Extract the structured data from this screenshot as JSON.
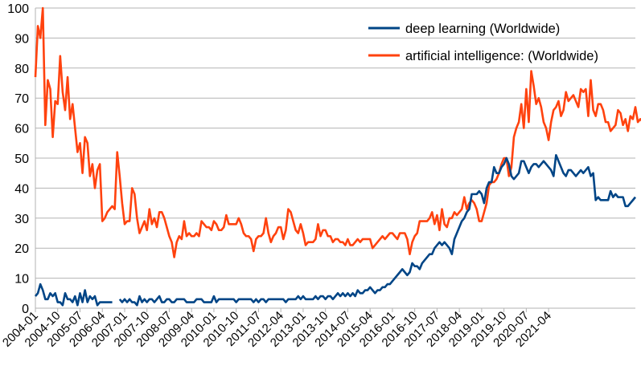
{
  "chart_data": {
    "type": "line",
    "title": "",
    "xlabel": "",
    "ylabel": "",
    "ylim": [
      0,
      100
    ],
    "yticks": [
      0,
      10,
      20,
      30,
      40,
      50,
      60,
      70,
      80,
      90,
      100
    ],
    "grid": "horizontal",
    "legend_position": "top-right",
    "x_start": "2004-01",
    "x_tick_labels": [
      "2004-01",
      "2004-10",
      "2005-07",
      "2006-04",
      "2007-01",
      "2007-10",
      "2008-07",
      "2009-04",
      "2010-01",
      "2010-10",
      "2011-07",
      "2012-04",
      "2013-01",
      "2013-10",
      "2014-07",
      "2015-04",
      "2016-01",
      "2016-10",
      "2017-07",
      "2018-04",
      "2019-01",
      "2019-10",
      "2020-07",
      "2021-04"
    ],
    "series": [
      {
        "name": "deep learning (Worldwide)",
        "color": "#004586",
        "values": [
          4,
          5,
          8,
          6,
          3,
          3,
          5,
          4,
          5,
          2,
          2,
          1,
          5,
          3,
          3,
          2,
          4,
          1,
          5,
          2,
          6,
          2,
          4,
          3,
          4,
          1,
          2,
          2,
          2,
          2,
          2,
          2,
          null,
          null,
          3,
          2,
          3,
          2,
          3,
          2,
          2,
          1,
          4,
          2,
          3,
          2,
          3,
          3,
          2,
          3,
          4,
          2,
          2,
          3,
          3,
          2,
          2,
          3,
          3,
          3,
          3,
          2,
          2,
          2,
          2,
          3,
          3,
          3,
          2,
          2,
          2,
          2,
          4,
          2,
          3,
          3,
          3,
          3,
          3,
          3,
          3,
          2,
          3,
          3,
          3,
          3,
          3,
          3,
          2,
          3,
          2,
          3,
          3,
          2,
          3,
          3,
          3,
          3,
          3,
          3,
          3,
          2,
          3,
          3,
          3,
          3,
          4,
          3,
          4,
          3,
          3,
          3,
          3,
          4,
          3,
          4,
          4,
          3,
          4,
          4,
          3,
          4,
          5,
          4,
          5,
          4,
          5,
          4,
          5,
          4,
          6,
          5,
          5,
          6,
          6,
          7,
          6,
          5,
          6,
          6,
          7,
          7,
          8,
          8,
          9,
          10,
          11,
          12,
          13,
          12,
          11,
          12,
          15,
          14,
          14,
          13,
          15,
          16,
          17,
          18,
          18,
          20,
          21,
          22,
          21,
          22,
          21,
          20,
          18,
          23,
          25,
          27,
          29,
          30,
          32,
          33,
          38,
          38,
          38,
          39,
          38,
          35,
          40,
          42,
          42,
          47,
          45,
          45,
          47,
          48,
          50,
          48,
          44,
          43,
          44,
          45,
          49,
          49,
          47,
          45,
          47,
          48,
          48,
          47,
          48,
          49,
          48,
          47,
          46,
          44,
          51,
          49,
          47,
          45,
          44,
          46,
          46,
          45,
          44,
          45,
          46,
          45,
          46,
          47,
          44,
          45,
          36,
          37,
          36,
          36,
          36,
          36,
          39,
          37,
          38,
          37,
          37,
          37,
          34,
          34,
          35,
          36,
          37
        ]
      },
      {
        "name": "artificial intelligence: (Worldwide)",
        "color": "#ff420e",
        "values": [
          77,
          94,
          90,
          100,
          61,
          76,
          73,
          57,
          69,
          68,
          84,
          72,
          66,
          77,
          63,
          68,
          60,
          52,
          55,
          45,
          57,
          55,
          44,
          48,
          40,
          46,
          48,
          29,
          30,
          32,
          33,
          34,
          33,
          52,
          44,
          35,
          28,
          29,
          29,
          40,
          38,
          30,
          25,
          27,
          29,
          26,
          33,
          28,
          30,
          27,
          32,
          32,
          30,
          27,
          24,
          22,
          17,
          22,
          24,
          23,
          29,
          24,
          25,
          24,
          24,
          25,
          24,
          29,
          28,
          27,
          27,
          26,
          29,
          28,
          26,
          26,
          27,
          31,
          28,
          28,
          28,
          28,
          30,
          28,
          25,
          24,
          24,
          23,
          19,
          23,
          24,
          24,
          25,
          30,
          25,
          22,
          24,
          25,
          27,
          27,
          23,
          26,
          33,
          32,
          29,
          26,
          25,
          28,
          25,
          21,
          22,
          22,
          22,
          23,
          28,
          24,
          26,
          26,
          24,
          24,
          22,
          23,
          23,
          22,
          22,
          21,
          23,
          21,
          21,
          22,
          23,
          22,
          23,
          23,
          23,
          23,
          20,
          21,
          22,
          23,
          24,
          23,
          24,
          25,
          25,
          24,
          23,
          25,
          25,
          25,
          23,
          18,
          22,
          24,
          25,
          29,
          29,
          29,
          29,
          30,
          32,
          28,
          31,
          26,
          33,
          28,
          27,
          30,
          30,
          32,
          31,
          32,
          33,
          37,
          33,
          35,
          36,
          35,
          33,
          29,
          29,
          32,
          35,
          41,
          42,
          42,
          43,
          45,
          48,
          50,
          50,
          44,
          47,
          57,
          60,
          62,
          68,
          60,
          73,
          62,
          79,
          74,
          68,
          70,
          67,
          62,
          60,
          56,
          62,
          66,
          67,
          69,
          64,
          66,
          72,
          69,
          70,
          71,
          69,
          67,
          73,
          72,
          73,
          64,
          76,
          66,
          64,
          68,
          68,
          66,
          62,
          62,
          59,
          60,
          61,
          66,
          65,
          61,
          63,
          59,
          64,
          63,
          67,
          62,
          63,
          62,
          61,
          64,
          65,
          65,
          67
        ]
      }
    ]
  }
}
